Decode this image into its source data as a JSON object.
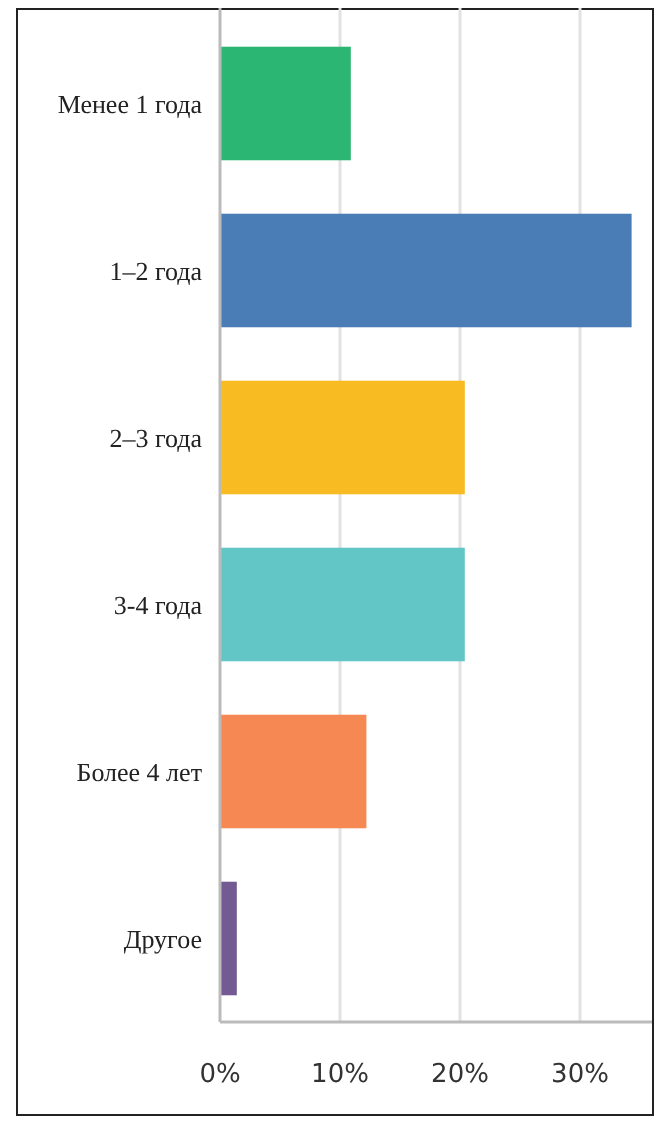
{
  "chart_data": {
    "type": "bar",
    "orientation": "horizontal",
    "categories": [
      "Менее 1 года",
      "1–2 года",
      "2–3 года",
      "3-4 года",
      "Более 4 лет",
      "Другое"
    ],
    "values": [
      10.9,
      34.3,
      20.4,
      20.4,
      12.2,
      1.4
    ],
    "colors": [
      "#2bb673",
      "#4a7db6",
      "#f9bb22",
      "#62c6c6",
      "#f58853",
      "#735a92"
    ],
    "xlim": [
      0,
      36
    ],
    "xticks": [
      {
        "value": 0,
        "label": "0%"
      },
      {
        "value": 10,
        "label": "10%"
      },
      {
        "value": 20,
        "label": "20%"
      },
      {
        "value": 30,
        "label": "30%"
      }
    ],
    "grid": "x"
  }
}
